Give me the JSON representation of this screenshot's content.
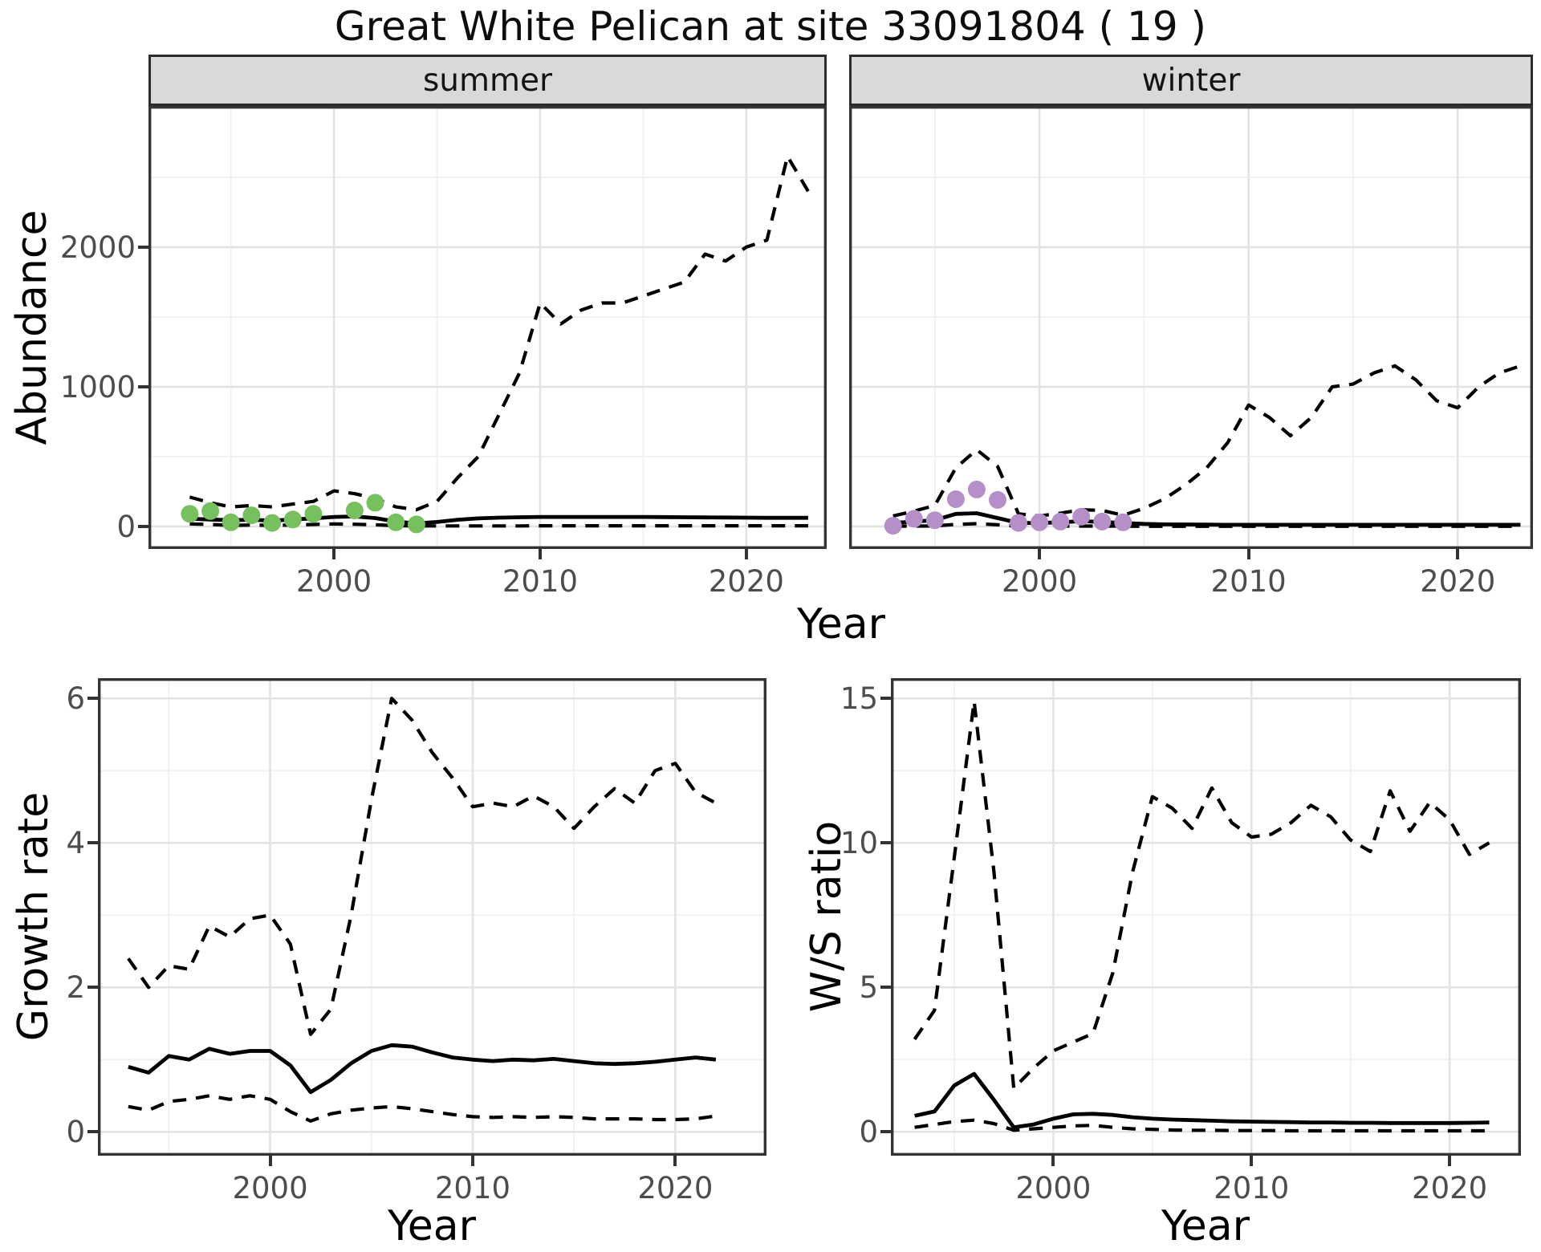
{
  "title": "Great White Pelican at site 33091804 ( 19 )",
  "colors": {
    "summer_points": "#77C05E",
    "winter_points": "#B48FC8",
    "lines": "#000000"
  },
  "chart_data": [
    {
      "id": "abundance_summer",
      "type": "line",
      "facet": "summer",
      "ylabel": "Abundance",
      "xlabel": "Year",
      "xlim": [
        1991.0,
        2023.9
      ],
      "ylim": [
        -161,
        3011
      ],
      "xticks": {
        "values": [
          2000,
          2010,
          2020
        ],
        "labels": [
          "2000",
          "2010",
          "2020"
        ],
        "minor": [
          1995,
          2005,
          2015
        ]
      },
      "yticks": {
        "values": [
          0,
          1000,
          2000
        ],
        "labels": [
          "0",
          "1000",
          "2000"
        ],
        "minor": [
          500,
          1500,
          2500
        ]
      },
      "grid": true,
      "legend": "none",
      "series": [
        {
          "name": "ci_upper_95",
          "style": "dashed",
          "color": "#000000",
          "x": [
            1993,
            1994,
            1995,
            1996,
            1997,
            1998,
            1999,
            2000,
            2001,
            2002,
            2003,
            2004,
            2005,
            2006,
            2007,
            2008,
            2009,
            2010,
            2011,
            2012,
            2013,
            2014,
            2015,
            2016,
            2017,
            2018,
            2019,
            2020,
            2021,
            2022,
            2023
          ],
          "y": [
            210,
            170,
            140,
            150,
            140,
            160,
            180,
            255,
            235,
            200,
            140,
            120,
            180,
            350,
            500,
            800,
            1100,
            1600,
            1450,
            1550,
            1600,
            1600,
            1650,
            1700,
            1750,
            1950,
            1900,
            2000,
            2050,
            2650,
            2400
          ]
        },
        {
          "name": "median",
          "style": "solid",
          "color": "#000000",
          "x": [
            1993,
            1994,
            1995,
            1996,
            1997,
            1998,
            1999,
            2000,
            2001,
            2002,
            2003,
            2004,
            2005,
            2006,
            2007,
            2008,
            2009,
            2010,
            2011,
            2012,
            2013,
            2014,
            2015,
            2016,
            2017,
            2018,
            2019,
            2020,
            2021,
            2022,
            2023
          ],
          "y": [
            55,
            50,
            45,
            48,
            42,
            50,
            58,
            68,
            72,
            60,
            35,
            22,
            32,
            48,
            58,
            63,
            66,
            68,
            68,
            68,
            68,
            68,
            68,
            67,
            66,
            65,
            64,
            63,
            62,
            62,
            62
          ]
        },
        {
          "name": "ci_lower_95",
          "style": "dashed",
          "color": "#000000",
          "x": [
            1993,
            1994,
            1995,
            1996,
            1997,
            1998,
            1999,
            2000,
            2001,
            2002,
            2003,
            2004,
            2005,
            2006,
            2007,
            2008,
            2009,
            2010,
            2011,
            2012,
            2013,
            2014,
            2015,
            2016,
            2017,
            2018,
            2019,
            2020,
            2021,
            2022,
            2023
          ],
          "y": [
            18,
            14,
            8,
            10,
            8,
            10,
            14,
            18,
            16,
            12,
            6,
            4,
            4,
            4,
            4,
            4,
            4,
            5,
            5,
            5,
            5,
            5,
            5,
            5,
            5,
            5,
            5,
            5,
            5,
            5,
            5
          ]
        },
        {
          "name": "observed",
          "style": "points",
          "color": "#77C05E",
          "x": [
            1993,
            1994,
            1995,
            1996,
            1997,
            1998,
            1999,
            2001,
            2002,
            2003,
            2004
          ],
          "y": [
            90,
            110,
            30,
            80,
            25,
            50,
            90,
            115,
            170,
            30,
            15
          ]
        }
      ]
    },
    {
      "id": "abundance_winter",
      "type": "line",
      "facet": "winter",
      "ylabel": "Abundance",
      "xlabel": "Year",
      "xlim": [
        1990.9,
        2023.6
      ],
      "ylim": [
        -161,
        3011
      ],
      "xticks": {
        "values": [
          2000,
          2010,
          2020
        ],
        "labels": [
          "2000",
          "2010",
          "2020"
        ],
        "minor": [
          1995,
          2005,
          2015
        ]
      },
      "yticks": {
        "values": [
          0,
          1000,
          2000
        ],
        "labels": [
          "0",
          "1000",
          "2000"
        ],
        "minor": [
          500,
          1500,
          2500
        ]
      },
      "grid": true,
      "legend": "none",
      "series": [
        {
          "name": "ci_upper_95",
          "style": "dashed",
          "color": "#000000",
          "x": [
            1993,
            1994,
            1995,
            1996,
            1997,
            1998,
            1999,
            2000,
            2001,
            2002,
            2003,
            2004,
            2005,
            2006,
            2007,
            2008,
            2009,
            2010,
            2011,
            2012,
            2013,
            2014,
            2015,
            2016,
            2017,
            2018,
            2019,
            2020,
            2021,
            2022,
            2023
          ],
          "y": [
            75,
            110,
            150,
            420,
            550,
            430,
            90,
            75,
            95,
            120,
            115,
            80,
            130,
            200,
            300,
            420,
            600,
            870,
            780,
            650,
            780,
            1000,
            1020,
            1100,
            1150,
            1050,
            900,
            850,
            1000,
            1100,
            1150
          ]
        },
        {
          "name": "median",
          "style": "solid",
          "color": "#000000",
          "x": [
            1993,
            1994,
            1995,
            1996,
            1997,
            1998,
            1999,
            2000,
            2001,
            2002,
            2003,
            2004,
            2005,
            2006,
            2007,
            2008,
            2009,
            2010,
            2011,
            2012,
            2013,
            2014,
            2015,
            2016,
            2017,
            2018,
            2019,
            2020,
            2021,
            2022,
            2023
          ],
          "y": [
            25,
            35,
            45,
            90,
            95,
            60,
            25,
            25,
            30,
            38,
            32,
            25,
            18,
            15,
            14,
            13,
            12,
            12,
            12,
            12,
            12,
            12,
            12,
            12,
            12,
            12,
            12,
            12,
            12,
            12,
            12
          ]
        },
        {
          "name": "ci_lower_95",
          "style": "dashed",
          "color": "#000000",
          "x": [
            1993,
            1994,
            1995,
            1996,
            1997,
            1998,
            1999,
            2000,
            2001,
            2002,
            2003,
            2004,
            2005,
            2006,
            2007,
            2008,
            2009,
            2010,
            2011,
            2012,
            2013,
            2014,
            2015,
            2016,
            2017,
            2018,
            2019,
            2020,
            2021,
            2022,
            2023
          ],
          "y": [
            2,
            3,
            4,
            15,
            20,
            12,
            2,
            2,
            2,
            3,
            3,
            2,
            1,
            1,
            1,
            1,
            1,
            1,
            1,
            1,
            1,
            1,
            1,
            1,
            1,
            1,
            1,
            1,
            1,
            1,
            1
          ]
        },
        {
          "name": "observed",
          "style": "points",
          "color": "#B48FC8",
          "x": [
            1993,
            1994,
            1995,
            1996,
            1997,
            1998,
            1999,
            2000,
            2001,
            2002,
            2003,
            2004
          ],
          "y": [
            5,
            55,
            45,
            195,
            265,
            190,
            25,
            30,
            35,
            70,
            35,
            30
          ]
        }
      ]
    },
    {
      "id": "growth_rate",
      "type": "line",
      "facet": "",
      "ylabel": "Growth rate",
      "xlabel": "Year",
      "xlim": [
        1991.5,
        2024.5
      ],
      "ylim": [
        -0.33,
        6.28
      ],
      "xticks": {
        "values": [
          2000,
          2010,
          2020
        ],
        "labels": [
          "2000",
          "2010",
          "2020"
        ],
        "minor": [
          1995,
          2005,
          2015
        ]
      },
      "yticks": {
        "values": [
          0,
          2,
          4,
          6
        ],
        "labels": [
          "0",
          "2",
          "4",
          "6"
        ],
        "minor": [
          1,
          3,
          5
        ]
      },
      "grid": true,
      "legend": "none",
      "series": [
        {
          "name": "ci_upper_95",
          "style": "dashed",
          "color": "#000000",
          "x": [
            1993,
            1994,
            1995,
            1996,
            1997,
            1998,
            1999,
            2000,
            2001,
            2002,
            2003,
            2004,
            2005,
            2006,
            2007,
            2008,
            2009,
            2010,
            2011,
            2012,
            2013,
            2014,
            2015,
            2016,
            2017,
            2018,
            2019,
            2020,
            2021,
            2022
          ],
          "y": [
            2.4,
            2.0,
            2.3,
            2.25,
            2.85,
            2.7,
            2.95,
            3.0,
            2.6,
            1.35,
            1.7,
            3.0,
            4.6,
            6.0,
            5.7,
            5.25,
            4.9,
            4.5,
            4.55,
            4.5,
            4.65,
            4.5,
            4.2,
            4.5,
            4.75,
            4.55,
            5.0,
            5.1,
            4.7,
            4.55
          ]
        },
        {
          "name": "median",
          "style": "solid",
          "color": "#000000",
          "x": [
            1993,
            1994,
            1995,
            1996,
            1997,
            1998,
            1999,
            2000,
            2001,
            2002,
            2003,
            2004,
            2005,
            2006,
            2007,
            2008,
            2009,
            2010,
            2011,
            2012,
            2013,
            2014,
            2015,
            2016,
            2017,
            2018,
            2019,
            2020,
            2021,
            2022
          ],
          "y": [
            0.9,
            0.82,
            1.05,
            1.0,
            1.15,
            1.08,
            1.12,
            1.12,
            0.92,
            0.55,
            0.72,
            0.95,
            1.12,
            1.2,
            1.18,
            1.1,
            1.03,
            1.0,
            0.98,
            1.0,
            0.99,
            1.01,
            0.98,
            0.95,
            0.94,
            0.95,
            0.97,
            1.0,
            1.03,
            1.0
          ]
        },
        {
          "name": "ci_lower_95",
          "style": "dashed",
          "color": "#000000",
          "x": [
            1993,
            1994,
            1995,
            1996,
            1997,
            1998,
            1999,
            2000,
            2001,
            2002,
            2003,
            2004,
            2005,
            2006,
            2007,
            2008,
            2009,
            2010,
            2011,
            2012,
            2013,
            2014,
            2015,
            2016,
            2017,
            2018,
            2019,
            2020,
            2021,
            2022
          ],
          "y": [
            0.35,
            0.3,
            0.42,
            0.45,
            0.5,
            0.45,
            0.5,
            0.45,
            0.28,
            0.15,
            0.25,
            0.3,
            0.33,
            0.35,
            0.32,
            0.28,
            0.24,
            0.21,
            0.2,
            0.21,
            0.2,
            0.21,
            0.2,
            0.18,
            0.18,
            0.18,
            0.17,
            0.17,
            0.18,
            0.22
          ]
        }
      ]
    },
    {
      "id": "ws_ratio",
      "type": "line",
      "facet": "",
      "ylabel": "W/S ratio",
      "xlabel": "Year",
      "xlim": [
        1991.8,
        2023.6
      ],
      "ylim": [
        -0.83,
        15.7
      ],
      "xticks": {
        "values": [
          2000,
          2010,
          2020
        ],
        "labels": [
          "2000",
          "2010",
          "2020"
        ],
        "minor": [
          1995,
          2005,
          2015
        ]
      },
      "yticks": {
        "values": [
          0,
          5,
          10,
          15
        ],
        "labels": [
          "0",
          "5",
          "10",
          "15"
        ],
        "minor": [
          2.5,
          7.5,
          12.5
        ]
      },
      "grid": true,
      "legend": "none",
      "series": [
        {
          "name": "ci_upper_95",
          "style": "dashed",
          "color": "#000000",
          "x": [
            1993,
            1994,
            1995,
            1996,
            1997,
            1998,
            1999,
            2000,
            2001,
            2002,
            2003,
            2004,
            2005,
            2006,
            2007,
            2008,
            2009,
            2010,
            2011,
            2012,
            2013,
            2014,
            2015,
            2016,
            2017,
            2018,
            2019,
            2020,
            2021,
            2022
          ],
          "y": [
            3.2,
            4.2,
            9.5,
            14.9,
            9.0,
            1.5,
            2.2,
            2.8,
            3.1,
            3.4,
            5.5,
            9.0,
            11.6,
            11.2,
            10.5,
            11.9,
            10.7,
            10.2,
            10.3,
            10.7,
            11.3,
            10.9,
            10.1,
            9.7,
            11.8,
            10.4,
            11.4,
            10.8,
            9.6,
            10.0
          ]
        },
        {
          "name": "median",
          "style": "solid",
          "color": "#000000",
          "x": [
            1993,
            1994,
            1995,
            1996,
            1997,
            1998,
            1999,
            2000,
            2001,
            2002,
            2003,
            2004,
            2005,
            2006,
            2007,
            2008,
            2009,
            2010,
            2011,
            2012,
            2013,
            2014,
            2015,
            2016,
            2017,
            2018,
            2019,
            2020,
            2021,
            2022
          ],
          "y": [
            0.55,
            0.7,
            1.6,
            2.0,
            1.1,
            0.15,
            0.25,
            0.45,
            0.6,
            0.62,
            0.58,
            0.5,
            0.45,
            0.42,
            0.4,
            0.38,
            0.36,
            0.35,
            0.34,
            0.33,
            0.32,
            0.32,
            0.31,
            0.31,
            0.3,
            0.3,
            0.3,
            0.3,
            0.31,
            0.32
          ]
        },
        {
          "name": "ci_lower_95",
          "style": "dashed",
          "color": "#000000",
          "x": [
            1993,
            1994,
            1995,
            1996,
            1997,
            1998,
            1999,
            2000,
            2001,
            2002,
            2003,
            2004,
            2005,
            2006,
            2007,
            2008,
            2009,
            2010,
            2011,
            2012,
            2013,
            2014,
            2015,
            2016,
            2017,
            2018,
            2019,
            2020,
            2021,
            2022
          ],
          "y": [
            0.15,
            0.25,
            0.35,
            0.4,
            0.28,
            0.05,
            0.1,
            0.15,
            0.2,
            0.22,
            0.15,
            0.1,
            0.08,
            0.06,
            0.05,
            0.05,
            0.04,
            0.04,
            0.04,
            0.03,
            0.03,
            0.03,
            0.03,
            0.03,
            0.03,
            0.03,
            0.03,
            0.03,
            0.03,
            0.03
          ]
        }
      ]
    }
  ]
}
